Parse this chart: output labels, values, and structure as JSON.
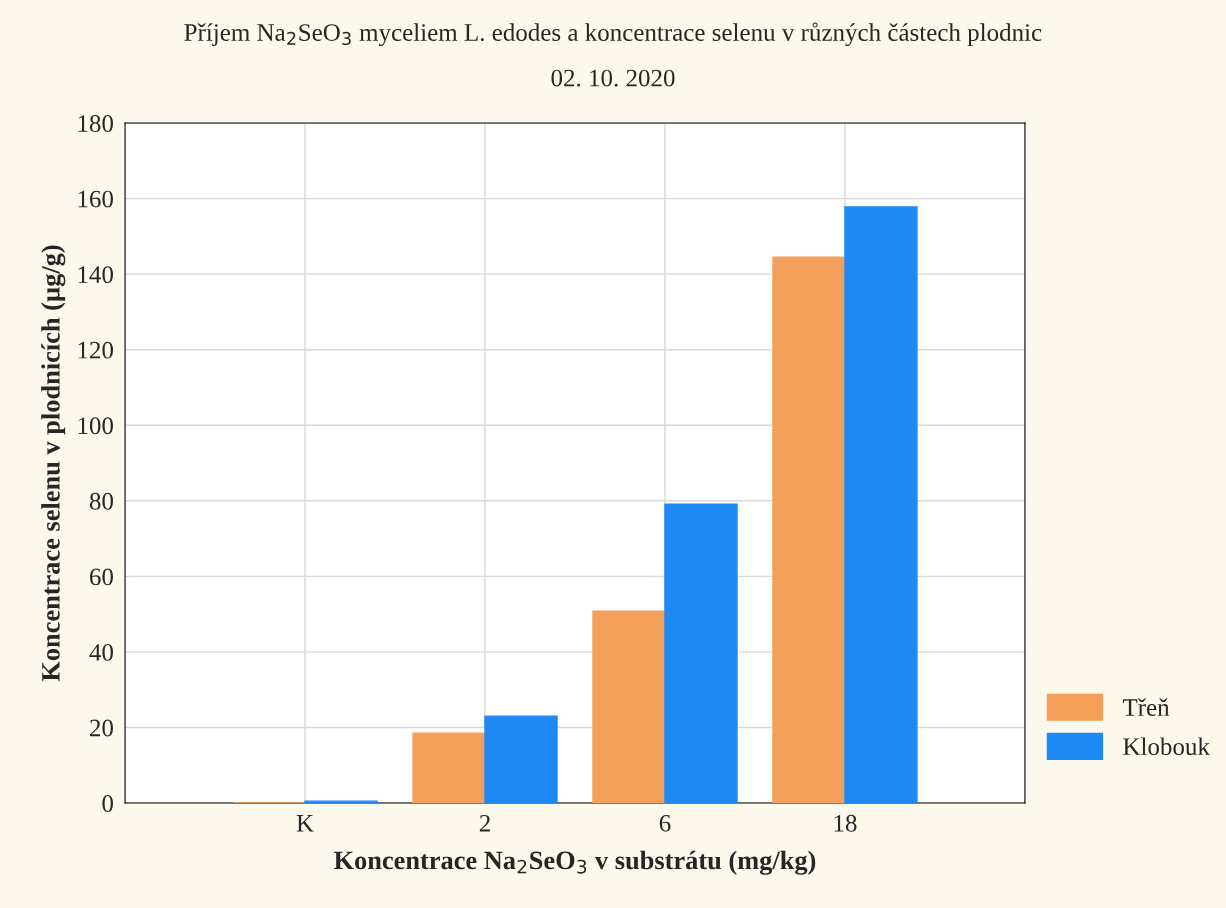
{
  "chart_data": {
    "type": "bar",
    "title": "Příjem Na$_{2}$SeO$_{3}$ myceliem L. edodes a koncentrace selenu v různých částech plodnic",
    "subtitle": "02. 10. 2020",
    "xlabel": "Koncentrace Na$_{2}$SeO$_{3}$ v substrátu (mg/kg)",
    "ylabel": "Koncentrace selenu v plodnicích (µg/g)",
    "categories": [
      "K",
      "2",
      "6",
      "18"
    ],
    "series": [
      {
        "name": "Třeň",
        "color": "#f4a05a",
        "values": [
          0,
          18.5,
          50.8,
          144.5
        ]
      },
      {
        "name": "Klobouk",
        "color": "#1e88f5",
        "values": [
          0.5,
          23,
          79.1,
          157.8
        ]
      }
    ],
    "ylim": [
      0,
      180
    ],
    "yticks": [
      0,
      20,
      40,
      60,
      80,
      100,
      120,
      140,
      160,
      180
    ],
    "grid": true,
    "legend": "bottom right"
  }
}
